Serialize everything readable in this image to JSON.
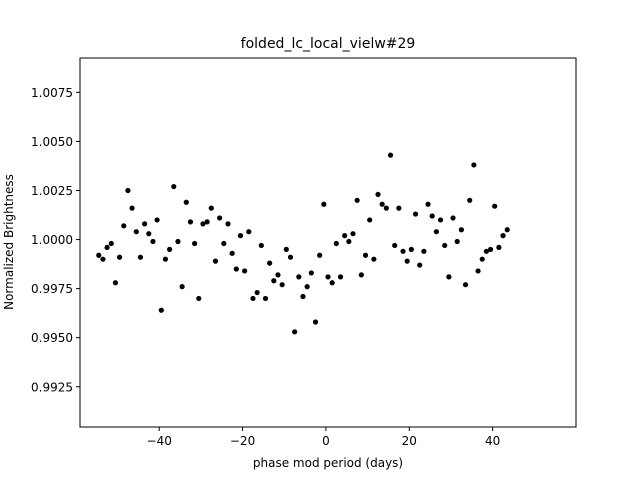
{
  "chart_data": {
    "type": "scatter",
    "title": "folded_lc_local_vielw#29",
    "xlabel": "phase mod period (days)",
    "ylabel": "Normalized Brightness",
    "xlim": [
      -59,
      60
    ],
    "ylim": [
      0.99045,
      1.00925
    ],
    "xticks": [
      -40,
      -20,
      0,
      20,
      40
    ],
    "xtick_labels": [
      "−40",
      "−20",
      "0",
      "20",
      "40"
    ],
    "yticks": [
      0.9925,
      0.995,
      0.9975,
      1.0,
      1.0025,
      1.005,
      1.0075
    ],
    "ytick_labels": [
      "0.9925",
      "0.9950",
      "0.9975",
      "1.0000",
      "1.0025",
      "1.0050",
      "1.0075"
    ],
    "grid": false,
    "marker_color": "#000000",
    "points": [
      {
        "x": -54.5,
        "y": 0.9992
      },
      {
        "x": -53.5,
        "y": 0.999
      },
      {
        "x": -52.5,
        "y": 0.9996
      },
      {
        "x": -51.5,
        "y": 0.9998
      },
      {
        "x": -50.5,
        "y": 0.9978
      },
      {
        "x": -49.5,
        "y": 0.9991
      },
      {
        "x": -48.5,
        "y": 1.0007
      },
      {
        "x": -47.5,
        "y": 1.0025
      },
      {
        "x": -46.5,
        "y": 1.0016
      },
      {
        "x": -45.5,
        "y": 1.0004
      },
      {
        "x": -44.5,
        "y": 0.9991
      },
      {
        "x": -43.5,
        "y": 1.0008
      },
      {
        "x": -42.5,
        "y": 1.0003
      },
      {
        "x": -41.5,
        "y": 0.9999
      },
      {
        "x": -40.5,
        "y": 1.001
      },
      {
        "x": -39.5,
        "y": 0.9964
      },
      {
        "x": -38.5,
        "y": 0.999
      },
      {
        "x": -37.5,
        "y": 0.9995
      },
      {
        "x": -36.5,
        "y": 1.0027
      },
      {
        "x": -35.5,
        "y": 0.9999
      },
      {
        "x": -34.5,
        "y": 0.9976
      },
      {
        "x": -33.5,
        "y": 1.0019
      },
      {
        "x": -32.5,
        "y": 1.0009
      },
      {
        "x": -31.5,
        "y": 0.9998
      },
      {
        "x": -30.5,
        "y": 0.997
      },
      {
        "x": -29.5,
        "y": 1.0008
      },
      {
        "x": -28.5,
        "y": 1.0009
      },
      {
        "x": -27.5,
        "y": 1.0016
      },
      {
        "x": -26.5,
        "y": 0.9989
      },
      {
        "x": -25.5,
        "y": 1.0011
      },
      {
        "x": -24.5,
        "y": 0.9998
      },
      {
        "x": -23.5,
        "y": 1.0008
      },
      {
        "x": -22.5,
        "y": 0.9993
      },
      {
        "x": -21.5,
        "y": 0.9985
      },
      {
        "x": -20.5,
        "y": 1.0002
      },
      {
        "x": -19.5,
        "y": 0.9984
      },
      {
        "x": -18.5,
        "y": 1.0004
      },
      {
        "x": -17.5,
        "y": 0.997
      },
      {
        "x": -16.5,
        "y": 0.9973
      },
      {
        "x": -15.5,
        "y": 0.9997
      },
      {
        "x": -14.5,
        "y": 0.997
      },
      {
        "x": -13.5,
        "y": 0.9988
      },
      {
        "x": -12.5,
        "y": 0.9979
      },
      {
        "x": -11.5,
        "y": 0.9982
      },
      {
        "x": -10.5,
        "y": 0.9977
      },
      {
        "x": -9.5,
        "y": 0.9995
      },
      {
        "x": -8.5,
        "y": 0.9991
      },
      {
        "x": -7.5,
        "y": 0.9953
      },
      {
        "x": -6.5,
        "y": 0.9981
      },
      {
        "x": -5.5,
        "y": 0.9971
      },
      {
        "x": -4.5,
        "y": 0.9976
      },
      {
        "x": -3.5,
        "y": 0.9983
      },
      {
        "x": -2.5,
        "y": 0.9958
      },
      {
        "x": -1.5,
        "y": 0.9992
      },
      {
        "x": -0.5,
        "y": 1.0018
      },
      {
        "x": 0.5,
        "y": 0.9981
      },
      {
        "x": 1.5,
        "y": 0.9978
      },
      {
        "x": 2.5,
        "y": 0.9998
      },
      {
        "x": 3.5,
        "y": 0.9981
      },
      {
        "x": 4.5,
        "y": 1.0002
      },
      {
        "x": 5.5,
        "y": 0.9999
      },
      {
        "x": 6.5,
        "y": 1.0003
      },
      {
        "x": 7.5,
        "y": 1.002
      },
      {
        "x": 8.5,
        "y": 0.9982
      },
      {
        "x": 9.5,
        "y": 0.9992
      },
      {
        "x": 10.5,
        "y": 1.001
      },
      {
        "x": 11.5,
        "y": 0.999
      },
      {
        "x": 12.5,
        "y": 1.0023
      },
      {
        "x": 13.5,
        "y": 1.0018
      },
      {
        "x": 14.5,
        "y": 1.0016
      },
      {
        "x": 15.5,
        "y": 1.0043
      },
      {
        "x": 16.5,
        "y": 0.9997
      },
      {
        "x": 17.5,
        "y": 1.0016
      },
      {
        "x": 18.5,
        "y": 0.9994
      },
      {
        "x": 19.5,
        "y": 0.9989
      },
      {
        "x": 20.5,
        "y": 0.9995
      },
      {
        "x": 21.5,
        "y": 1.0013
      },
      {
        "x": 22.5,
        "y": 0.9987
      },
      {
        "x": 23.5,
        "y": 0.9994
      },
      {
        "x": 24.5,
        "y": 1.0018
      },
      {
        "x": 25.5,
        "y": 1.0012
      },
      {
        "x": 26.5,
        "y": 1.0004
      },
      {
        "x": 27.5,
        "y": 1.001
      },
      {
        "x": 28.5,
        "y": 0.9997
      },
      {
        "x": 29.5,
        "y": 0.9981
      },
      {
        "x": 30.5,
        "y": 1.0011
      },
      {
        "x": 31.5,
        "y": 0.9999
      },
      {
        "x": 32.5,
        "y": 1.0005
      },
      {
        "x": 33.5,
        "y": 0.9977
      },
      {
        "x": 34.5,
        "y": 1.002
      },
      {
        "x": 35.5,
        "y": 1.0038
      },
      {
        "x": 36.5,
        "y": 0.9984
      },
      {
        "x": 37.5,
        "y": 0.999
      },
      {
        "x": 38.5,
        "y": 0.9994
      },
      {
        "x": 39.5,
        "y": 0.9995
      },
      {
        "x": 40.5,
        "y": 1.0017
      },
      {
        "x": 41.5,
        "y": 0.9996
      },
      {
        "x": 42.5,
        "y": 1.0002
      },
      {
        "x": 43.5,
        "y": 1.0005
      }
    ]
  }
}
